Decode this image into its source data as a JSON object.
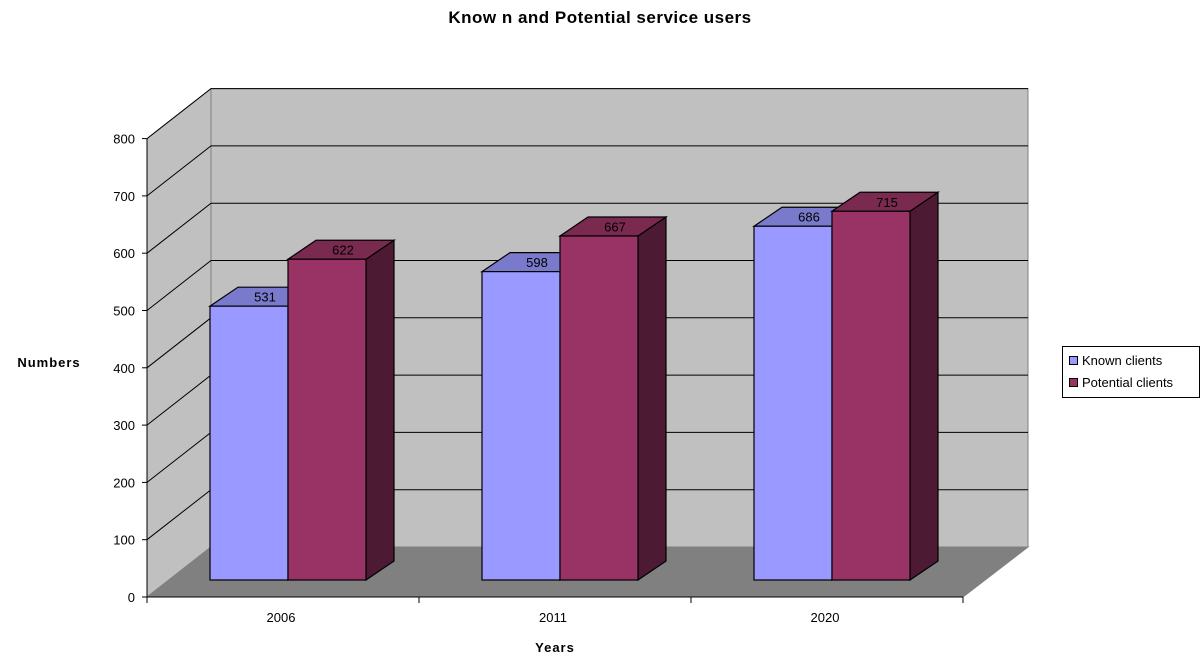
{
  "chart_data": {
    "type": "bar",
    "title": "Know n and Potential service users",
    "xlabel": "Years",
    "ylabel": "Numbers",
    "categories": [
      "2006",
      "2011",
      "2020"
    ],
    "series": [
      {
        "name": "Known clients",
        "values": [
          531,
          598,
          686
        ],
        "color": "#9999ff",
        "side_color": "#6b6bb3",
        "top_color": "#7a7acc"
      },
      {
        "name": "Potential clients",
        "values": [
          622,
          667,
          715
        ],
        "color": "#993366",
        "side_color": "#4d1a33",
        "top_color": "#7a294f"
      }
    ],
    "ylim": [
      0,
      800
    ],
    "yticks": [
      "0",
      "100",
      "200",
      "300",
      "400",
      "500",
      "600",
      "700",
      "800"
    ],
    "data_labels": [
      [
        "531",
        "598",
        "686"
      ],
      [
        "622",
        "667",
        "715"
      ]
    ],
    "grid": true,
    "legend_position": "right",
    "wall_color": "#c0c0c0",
    "floor_color": "#808080",
    "three_d": true
  }
}
